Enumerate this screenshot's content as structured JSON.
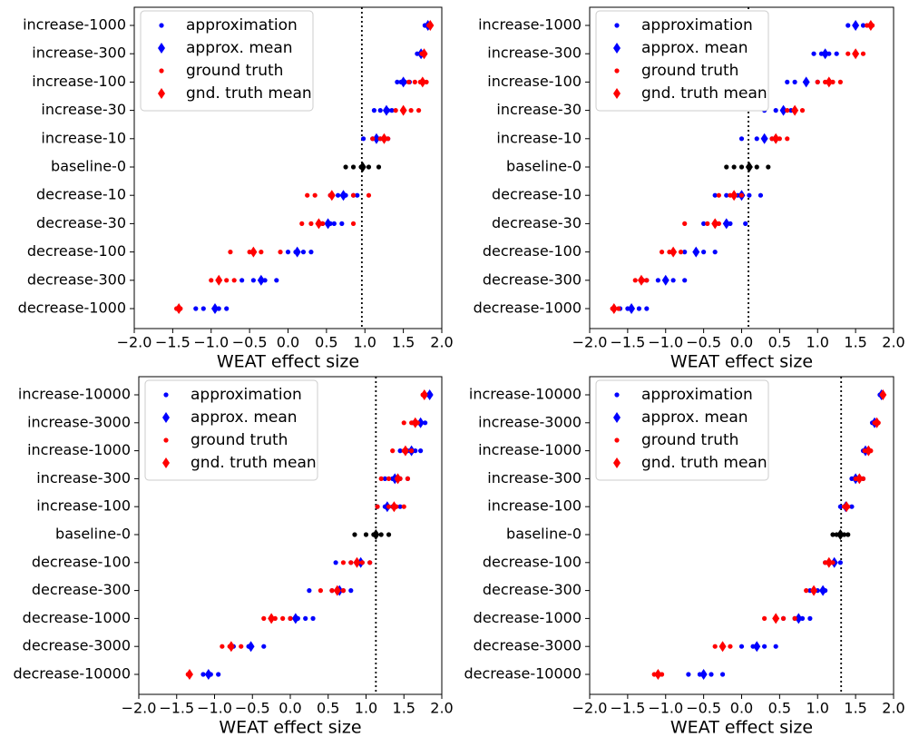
{
  "chart_data": [
    {
      "type": "scatter",
      "xlabel": "WEAT effect size",
      "categories": [
        "increase-1000",
        "increase-300",
        "increase-100",
        "increase-30",
        "increase-10",
        "baseline-0",
        "decrease-10",
        "decrease-30",
        "decrease-100",
        "decrease-300",
        "decrease-1000"
      ],
      "xlim": [
        -2,
        2
      ],
      "xticks": [
        {
          "value": -2,
          "label": "−2.0"
        },
        {
          "value": -1.5,
          "label": "−1.5"
        },
        {
          "value": -1,
          "label": "−1.0"
        },
        {
          "value": -0.5,
          "label": "−0.5"
        },
        {
          "value": 0,
          "label": "0.0"
        },
        {
          "value": 0.5,
          "label": "0.5"
        },
        {
          "value": 1,
          "label": "1.0"
        },
        {
          "value": 1.5,
          "label": "1.5"
        },
        {
          "value": 2,
          "label": "2.0"
        }
      ],
      "vline": 0.96,
      "series": [
        {
          "name": "approximation",
          "color": "#0000ff",
          "marker": "point",
          "values": [
            [
              1.78,
              1.82,
              1.85
            ],
            [
              1.68,
              1.72,
              1.75,
              1.78
            ],
            [
              1.42,
              1.47,
              1.52,
              1.58
            ],
            [
              1.12,
              1.2,
              1.3,
              1.35
            ],
            [
              0.98,
              1.1,
              1.2,
              1.3
            ],
            null,
            [
              0.55,
              0.65,
              0.75,
              0.85,
              0.9
            ],
            [
              0.45,
              0.55,
              0.6,
              0.7
            ],
            [
              0.0,
              0.1,
              0.2,
              0.3
            ],
            [
              -0.6,
              -0.45,
              -0.3,
              -0.15
            ],
            [
              -1.2,
              -1.1,
              -0.9,
              -0.8
            ]
          ]
        },
        {
          "name": "approx. mean",
          "color": "#0000ff",
          "marker": "diamond",
          "values": [
            1.82,
            1.73,
            1.5,
            1.28,
            1.15,
            null,
            0.72,
            0.52,
            0.12,
            -0.35,
            -0.95
          ]
        },
        {
          "name": "ground truth",
          "color": "#ff0000",
          "marker": "point",
          "values": [
            [
              1.83,
              1.86
            ],
            [
              1.74,
              1.78
            ],
            [
              1.57,
              1.65,
              1.72,
              1.8
            ],
            [
              1.4,
              1.5,
              1.6,
              1.7
            ],
            [
              1.1,
              1.2,
              1.3
            ],
            null,
            [
              0.25,
              0.35,
              0.55,
              0.85,
              1.05
            ],
            [
              0.18,
              0.3,
              0.45,
              0.85
            ],
            [
              -0.75,
              -0.5,
              -0.35,
              -0.1
            ],
            [
              -1.0,
              -0.9,
              -0.8,
              -0.7
            ],
            [
              -1.45,
              -1.4
            ]
          ]
        },
        {
          "name": "gnd. truth mean",
          "color": "#ff0000",
          "marker": "diamond",
          "values": [
            1.85,
            1.77,
            1.75,
            1.5,
            1.25,
            null,
            0.57,
            0.4,
            -0.45,
            -0.9,
            -1.42
          ]
        },
        {
          "color": "#000000",
          "marker": "point",
          "values": [
            null,
            null,
            null,
            null,
            null,
            [
              0.75,
              0.85,
              0.95,
              1.05,
              1.18
            ],
            null,
            null,
            null,
            null,
            null
          ]
        },
        {
          "color": "#000000",
          "marker": "diamond",
          "values": [
            null,
            null,
            null,
            null,
            null,
            0.97,
            null,
            null,
            null,
            null,
            null
          ]
        }
      ]
    },
    {
      "type": "scatter",
      "xlabel": "WEAT effect size",
      "categories": [
        "increase-1000",
        "increase-300",
        "increase-100",
        "increase-30",
        "increase-10",
        "baseline-0",
        "decrease-10",
        "decrease-30",
        "decrease-100",
        "decrease-300",
        "decrease-1000"
      ],
      "xlim": [
        -2,
        2
      ],
      "xticks": [
        {
          "value": -2,
          "label": "−2.0"
        },
        {
          "value": -1.5,
          "label": "−1.5"
        },
        {
          "value": -1,
          "label": "−1.0"
        },
        {
          "value": -0.5,
          "label": "−0.5"
        },
        {
          "value": 0,
          "label": "0.0"
        },
        {
          "value": 0.5,
          "label": "0.5"
        },
        {
          "value": 1,
          "label": "1.0"
        },
        {
          "value": 1.5,
          "label": "1.5"
        },
        {
          "value": 2,
          "label": "2.0"
        }
      ],
      "vline": 0.09,
      "series": [
        {
          "name": "approximation",
          "color": "#0000ff",
          "marker": "point",
          "values": [
            [
              1.4,
              1.5,
              1.6
            ],
            [
              0.95,
              1.05,
              1.15,
              1.25
            ],
            [
              0.6,
              0.7,
              0.85,
              1.0
            ],
            [
              0.3,
              0.45,
              0.55,
              0.65
            ],
            [
              0.0,
              0.2,
              0.3,
              0.4
            ],
            null,
            [
              -0.35,
              -0.2,
              -0.05,
              0.1,
              0.25
            ],
            [
              -0.5,
              -0.35,
              -0.15,
              0.05
            ],
            [
              -0.9,
              -0.75,
              -0.5,
              -0.35
            ],
            [
              -1.25,
              -1.1,
              -0.9,
              -0.75
            ],
            [
              -1.6,
              -1.5,
              -1.35,
              -1.25
            ]
          ]
        },
        {
          "name": "approx. mean",
          "color": "#0000ff",
          "marker": "diamond",
          "values": [
            1.5,
            1.1,
            0.85,
            0.55,
            0.3,
            null,
            0.0,
            -0.2,
            -0.6,
            -1.0,
            -1.45
          ]
        },
        {
          "name": "ground truth",
          "color": "#ff0000",
          "marker": "point",
          "values": [
            [
              1.65,
              1.72
            ],
            [
              1.4,
              1.5,
              1.6
            ],
            [
              1.0,
              1.1,
              1.2,
              1.3
            ],
            [
              0.6,
              0.7,
              0.8
            ],
            [
              0.4,
              0.5,
              0.6
            ],
            null,
            [
              -0.3,
              -0.15,
              0.0
            ],
            [
              -0.75,
              -0.45,
              -0.3
            ],
            [
              -1.05,
              -0.95,
              -0.8
            ],
            [
              -1.4,
              -1.3,
              -1.25
            ],
            [
              -1.7,
              -1.62
            ]
          ]
        },
        {
          "name": "gnd. truth mean",
          "color": "#ff0000",
          "marker": "diamond",
          "values": [
            1.7,
            1.5,
            1.15,
            0.7,
            0.45,
            null,
            -0.1,
            -0.35,
            -0.9,
            -1.32,
            -1.68
          ]
        },
        {
          "color": "#000000",
          "marker": "point",
          "values": [
            null,
            null,
            null,
            null,
            null,
            [
              -0.2,
              -0.1,
              0.0,
              0.2,
              0.35
            ],
            null,
            null,
            null,
            null,
            null
          ]
        },
        {
          "color": "#000000",
          "marker": "diamond",
          "values": [
            null,
            null,
            null,
            null,
            null,
            0.1,
            null,
            null,
            null,
            null,
            null
          ]
        }
      ]
    },
    {
      "type": "scatter",
      "xlabel": "WEAT effect size",
      "categories": [
        "increase-10000",
        "increase-3000",
        "increase-1000",
        "increase-300",
        "increase-100",
        "baseline-0",
        "decrease-100",
        "decrease-300",
        "decrease-1000",
        "decrease-3000",
        "decrease-10000"
      ],
      "xlim": [
        -2,
        2
      ],
      "xticks": [
        {
          "value": -2,
          "label": "−2.0"
        },
        {
          "value": -1.5,
          "label": "−1.5"
        },
        {
          "value": -1,
          "label": "−1.0"
        },
        {
          "value": -0.5,
          "label": "−0.5"
        },
        {
          "value": 0,
          "label": "0.0"
        },
        {
          "value": 0.5,
          "label": "0.5"
        },
        {
          "value": 1,
          "label": "1.0"
        },
        {
          "value": 1.5,
          "label": "1.5"
        },
        {
          "value": 2,
          "label": "2.0"
        }
      ],
      "vline": 1.13,
      "series": [
        {
          "name": "approximation",
          "color": "#0000ff",
          "marker": "point",
          "values": [
            [
              1.82,
              1.85
            ],
            [
              1.62,
              1.7,
              1.78
            ],
            [
              1.45,
              1.55,
              1.65,
              1.72
            ],
            [
              1.25,
              1.35,
              1.45,
              1.55
            ],
            [
              1.15,
              1.25,
              1.35,
              1.45
            ],
            null,
            [
              0.6,
              0.8,
              0.95,
              1.05
            ],
            [
              0.25,
              0.55,
              0.7,
              0.8
            ],
            [
              0.0,
              0.1,
              0.2,
              0.3
            ],
            [
              -0.75,
              -0.55,
              -0.35
            ],
            [
              -1.15,
              -1.05,
              -0.95
            ]
          ]
        },
        {
          "name": "approx. mean",
          "color": "#0000ff",
          "marker": "diamond",
          "values": [
            1.84,
            1.72,
            1.6,
            1.38,
            1.28,
            null,
            0.93,
            0.65,
            0.07,
            -0.52,
            -1.08
          ]
        },
        {
          "name": "ground truth",
          "color": "#ff0000",
          "marker": "point",
          "values": [
            [
              1.75,
              1.78
            ],
            [
              1.5,
              1.6,
              1.68
            ],
            [
              1.35,
              1.5,
              1.6
            ],
            [
              1.2,
              1.3,
              1.45,
              1.55
            ],
            [
              1.15,
              1.3,
              1.4,
              1.5
            ],
            null,
            [
              0.7,
              0.8,
              0.95,
              1.05
            ],
            [
              0.4,
              0.55,
              0.7
            ],
            [
              -0.35,
              -0.2,
              -0.1,
              0.0
            ],
            [
              -0.9,
              -0.8,
              -0.65
            ],
            [
              -1.35
            ]
          ]
        },
        {
          "name": "gnd. truth mean",
          "color": "#ff0000",
          "marker": "diamond",
          "values": [
            1.77,
            1.65,
            1.52,
            1.42,
            1.37,
            null,
            0.88,
            0.62,
            -0.25,
            -0.78,
            -1.33
          ]
        },
        {
          "color": "#000000",
          "marker": "point",
          "values": [
            null,
            null,
            null,
            null,
            null,
            [
              0.85,
              1.0,
              1.1,
              1.2,
              1.3
            ],
            null,
            null,
            null,
            null,
            null
          ]
        },
        {
          "color": "#000000",
          "marker": "diamond",
          "values": [
            null,
            null,
            null,
            null,
            null,
            1.13,
            null,
            null,
            null,
            null,
            null
          ]
        }
      ]
    },
    {
      "type": "scatter",
      "xlabel": "WEAT effect size",
      "categories": [
        "increase-10000",
        "increase-3000",
        "increase-1000",
        "increase-300",
        "increase-100",
        "baseline-0",
        "decrease-100",
        "decrease-300",
        "decrease-1000",
        "decrease-3000",
        "decrease-10000"
      ],
      "xlim": [
        -2,
        2
      ],
      "xticks": [
        {
          "value": -2,
          "label": "−2.0"
        },
        {
          "value": -1.5,
          "label": "−1.5"
        },
        {
          "value": -1,
          "label": "−1.0"
        },
        {
          "value": -0.5,
          "label": "−0.5"
        },
        {
          "value": 0,
          "label": "0.0"
        },
        {
          "value": 0.5,
          "label": "0.5"
        },
        {
          "value": 1,
          "label": "1.0"
        },
        {
          "value": 1.5,
          "label": "1.5"
        },
        {
          "value": 2,
          "label": "2.0"
        }
      ],
      "vline": 1.31,
      "series": [
        {
          "name": "approximation",
          "color": "#0000ff",
          "marker": "point",
          "values": [
            [
              1.82,
              1.86
            ],
            [
              1.72,
              1.78
            ],
            [
              1.6,
              1.68
            ],
            [
              1.45,
              1.55,
              1.6
            ],
            [
              1.3,
              1.38,
              1.45
            ],
            null,
            [
              1.1,
              1.2,
              1.3
            ],
            [
              0.9,
              1.0,
              1.1
            ],
            [
              0.55,
              0.7,
              0.8,
              0.9
            ],
            [
              0.0,
              0.15,
              0.3,
              0.45
            ],
            [
              -0.7,
              -0.55,
              -0.4,
              -0.25
            ]
          ]
        },
        {
          "name": "approx. mean",
          "color": "#0000ff",
          "marker": "diamond",
          "values": [
            1.84,
            1.75,
            1.63,
            1.5,
            1.37,
            null,
            1.22,
            1.07,
            0.75,
            0.2,
            -0.5
          ]
        },
        {
          "name": "ground truth",
          "color": "#ff0000",
          "marker": "point",
          "values": [
            [
              1.86
            ],
            [
              1.75,
              1.8
            ],
            [
              1.62,
              1.7
            ],
            [
              1.5,
              1.6
            ],
            [
              1.35,
              1.4
            ],
            null,
            [
              1.1,
              1.2
            ],
            [
              0.85,
              0.95
            ],
            [
              0.3,
              0.45,
              0.55,
              0.7
            ],
            [
              -0.35,
              -0.25,
              -0.15
            ],
            [
              -1.15,
              -1.05
            ]
          ]
        },
        {
          "name": "gnd. truth mean",
          "color": "#ff0000",
          "marker": "diamond",
          "values": [
            1.86,
            1.78,
            1.67,
            1.55,
            1.38,
            null,
            1.15,
            0.95,
            0.45,
            -0.25,
            -1.1
          ]
        },
        {
          "color": "#000000",
          "marker": "point",
          "values": [
            null,
            null,
            null,
            null,
            null,
            [
              1.2,
              1.25,
              1.3,
              1.35,
              1.4
            ],
            null,
            null,
            null,
            null,
            null
          ]
        },
        {
          "color": "#000000",
          "marker": "diamond",
          "values": [
            null,
            null,
            null,
            null,
            null,
            1.3,
            null,
            null,
            null,
            null,
            null
          ]
        }
      ]
    }
  ]
}
